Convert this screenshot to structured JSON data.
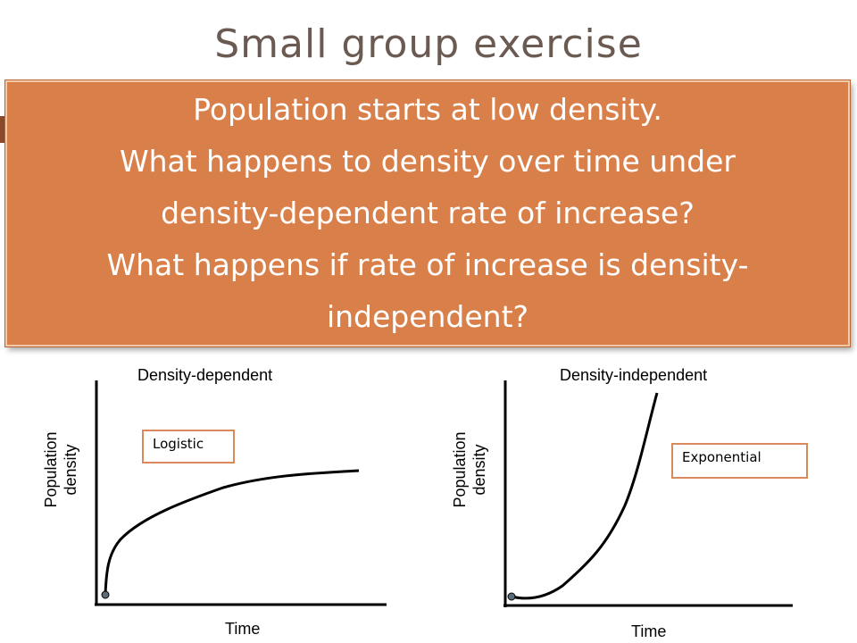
{
  "slide": {
    "title": "Small group exercise",
    "callout_lines": [
      "Population starts at low density.",
      "What happens to density over time under",
      "density-dependent rate of increase?",
      "What happens if rate of increase is density-",
      "independent?"
    ]
  },
  "colors": {
    "callout_bg": "#d9804a",
    "tag_border": "#d98a5a",
    "title_color": "#6b5a52"
  },
  "charts": {
    "left": {
      "title": "Density-dependent",
      "xlabel": "Time",
      "ylabel_line1": "Population",
      "ylabel_line2": "density",
      "tag": "Logistic"
    },
    "right": {
      "title": "Density-independent",
      "xlabel": "Time",
      "ylabel_line1": "Population",
      "ylabel_line2": "density",
      "tag": "Exponential"
    }
  }
}
